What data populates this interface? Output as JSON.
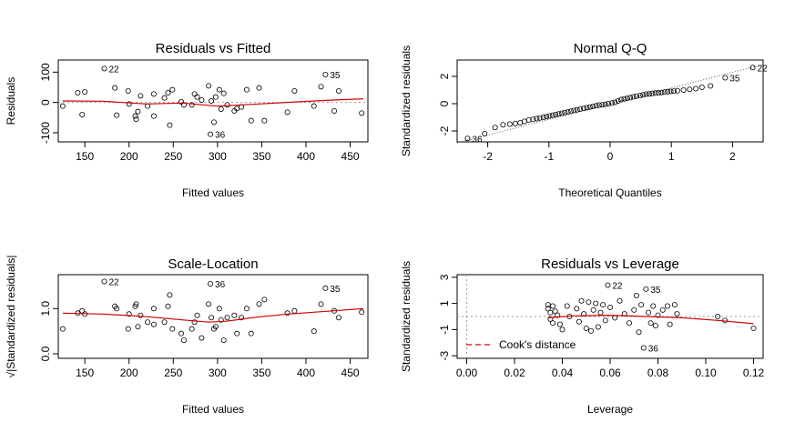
{
  "chart_data": [
    {
      "type": "scatter",
      "title": "Residuals vs Fitted",
      "xlabel": "Fitted values",
      "ylabel": "Residuals",
      "xlim": [
        120,
        470
      ],
      "ylim": [
        -130,
        140
      ],
      "xticks": [
        150,
        200,
        250,
        300,
        350,
        400,
        450
      ],
      "yticks": [
        -100,
        0,
        100
      ],
      "points": [
        [
          125,
          -12
        ],
        [
          142,
          32
        ],
        [
          147,
          -40
        ],
        [
          150,
          35
        ],
        [
          172,
          112
        ],
        [
          184,
          48
        ],
        [
          186,
          -42
        ],
        [
          199,
          38
        ],
        [
          200,
          -5
        ],
        [
          207,
          -45
        ],
        [
          208,
          -55
        ],
        [
          210,
          -30
        ],
        [
          213,
          22
        ],
        [
          221,
          -12
        ],
        [
          228,
          -45
        ],
        [
          228,
          28
        ],
        [
          240,
          15
        ],
        [
          244,
          32
        ],
        [
          246,
          -75
        ],
        [
          249,
          42
        ],
        [
          259,
          2
        ],
        [
          262,
          -8
        ],
        [
          271,
          -8
        ],
        [
          274,
          28
        ],
        [
          277,
          18
        ],
        [
          282,
          8
        ],
        [
          290,
          55
        ],
        [
          292,
          -105
        ],
        [
          293,
          5
        ],
        [
          296,
          -65
        ],
        [
          298,
          18
        ],
        [
          302,
          42
        ],
        [
          304,
          -22
        ],
        [
          307,
          30
        ],
        [
          311,
          -8
        ],
        [
          319,
          -28
        ],
        [
          322,
          -20
        ],
        [
          327,
          -15
        ],
        [
          333,
          42
        ],
        [
          338,
          -60
        ],
        [
          347,
          48
        ],
        [
          353,
          -60
        ],
        [
          379,
          -32
        ],
        [
          387,
          38
        ],
        [
          409,
          -12
        ],
        [
          417,
          52
        ],
        [
          422,
          92
        ],
        [
          432,
          -28
        ],
        [
          437,
          38
        ],
        [
          463,
          -35
        ]
      ],
      "smooth": [
        [
          125,
          5
        ],
        [
          170,
          4
        ],
        [
          220,
          -5
        ],
        [
          260,
          -2
        ],
        [
          300,
          -12
        ],
        [
          340,
          -6
        ],
        [
          390,
          2
        ],
        [
          430,
          8
        ],
        [
          465,
          12
        ]
      ],
      "labels": [
        {
          "text": "22",
          "x": 172,
          "y": 112
        },
        {
          "text": "35",
          "x": 422,
          "y": 92
        },
        {
          "text": "36",
          "x": 292,
          "y": -105
        }
      ],
      "grid": false
    },
    {
      "type": "scatter",
      "title": "Normal Q-Q",
      "xlabel": "Theoretical Quantiles",
      "ylabel": "Standardized residuals",
      "xlim": [
        -2.5,
        2.5
      ],
      "ylim": [
        -2.8,
        3.2
      ],
      "xticks": [
        -2,
        -1,
        0,
        1,
        2
      ],
      "yticks": [
        -2,
        0,
        2
      ],
      "reference_line": {
        "slope": 1.15,
        "intercept": 0
      },
      "points": [
        [
          -2.33,
          -2.55
        ],
        [
          -2.05,
          -2.2
        ],
        [
          -1.88,
          -1.75
        ],
        [
          -1.75,
          -1.55
        ],
        [
          -1.64,
          -1.5
        ],
        [
          -1.55,
          -1.45
        ],
        [
          -1.47,
          -1.4
        ],
        [
          -1.4,
          -1.3
        ],
        [
          -1.33,
          -1.2
        ],
        [
          -1.26,
          -1.15
        ],
        [
          -1.2,
          -1.1
        ],
        [
          -1.15,
          -1.05
        ],
        [
          -1.09,
          -1.0
        ],
        [
          -1.04,
          -0.95
        ],
        [
          -0.99,
          -0.9
        ],
        [
          -0.94,
          -0.85
        ],
        [
          -0.89,
          -0.8
        ],
        [
          -0.84,
          -0.75
        ],
        [
          -0.79,
          -0.7
        ],
        [
          -0.74,
          -0.65
        ],
        [
          -0.69,
          -0.6
        ],
        [
          -0.64,
          -0.55
        ],
        [
          -0.59,
          -0.5
        ],
        [
          -0.54,
          -0.45
        ],
        [
          -0.49,
          -0.4
        ],
        [
          -0.43,
          -0.35
        ],
        [
          -0.38,
          -0.3
        ],
        [
          -0.33,
          -0.25
        ],
        [
          -0.28,
          -0.2
        ],
        [
          -0.23,
          -0.15
        ],
        [
          -0.18,
          -0.1
        ],
        [
          -0.13,
          -0.08
        ],
        [
          -0.08,
          -0.05
        ],
        [
          -0.03,
          0.0
        ],
        [
          0.03,
          0.05
        ],
        [
          0.08,
          0.1
        ],
        [
          0.13,
          0.2
        ],
        [
          0.18,
          0.3
        ],
        [
          0.23,
          0.35
        ],
        [
          0.28,
          0.4
        ],
        [
          0.33,
          0.45
        ],
        [
          0.38,
          0.5
        ],
        [
          0.43,
          0.55
        ],
        [
          0.49,
          0.6
        ],
        [
          0.54,
          0.65
        ],
        [
          0.59,
          0.7
        ],
        [
          0.64,
          0.72
        ],
        [
          0.69,
          0.75
        ],
        [
          0.74,
          0.78
        ],
        [
          0.79,
          0.8
        ],
        [
          0.84,
          0.82
        ],
        [
          0.89,
          0.85
        ],
        [
          0.94,
          0.88
        ],
        [
          0.99,
          0.9
        ],
        [
          1.04,
          0.92
        ],
        [
          1.1,
          0.95
        ],
        [
          1.2,
          1.0
        ],
        [
          1.3,
          1.05
        ],
        [
          1.4,
          1.1
        ],
        [
          1.5,
          1.2
        ],
        [
          1.64,
          1.3
        ],
        [
          1.88,
          1.9
        ],
        [
          2.33,
          2.65
        ]
      ],
      "labels": [
        {
          "text": "22",
          "x": 2.33,
          "y": 2.65
        },
        {
          "text": "35",
          "x": 1.88,
          "y": 1.9
        },
        {
          "text": "36",
          "x": -2.33,
          "y": -2.55
        }
      ],
      "grid": false
    },
    {
      "type": "scatter",
      "title": "Scale-Location",
      "xlabel": "Fitted values",
      "ylabel": "√|Standardized residuals|",
      "xlim": [
        120,
        470
      ],
      "ylim": [
        -0.1,
        1.75
      ],
      "xticks": [
        150,
        200,
        250,
        300,
        350,
        400,
        450
      ],
      "yticks": [
        0.0,
        1.0
      ],
      "ytick_labels": [
        "0.0",
        "1.0"
      ],
      "points": [
        [
          125,
          0.55
        ],
        [
          142,
          0.9
        ],
        [
          147,
          0.95
        ],
        [
          150,
          0.88
        ],
        [
          172,
          1.6
        ],
        [
          184,
          1.05
        ],
        [
          186,
          1.0
        ],
        [
          199,
          0.55
        ],
        [
          200,
          0.88
        ],
        [
          207,
          1.05
        ],
        [
          208,
          1.1
        ],
        [
          210,
          0.6
        ],
        [
          213,
          0.85
        ],
        [
          221,
          0.7
        ],
        [
          228,
          0.65
        ],
        [
          228,
          1.0
        ],
        [
          240,
          0.7
        ],
        [
          244,
          1.05
        ],
        [
          246,
          1.3
        ],
        [
          249,
          0.55
        ],
        [
          259,
          0.45
        ],
        [
          262,
          0.3
        ],
        [
          271,
          0.55
        ],
        [
          274,
          0.7
        ],
        [
          277,
          0.85
        ],
        [
          282,
          0.35
        ],
        [
          290,
          1.1
        ],
        [
          292,
          1.55
        ],
        [
          293,
          0.8
        ],
        [
          296,
          0.55
        ],
        [
          298,
          0.6
        ],
        [
          302,
          1.0
        ],
        [
          304,
          0.75
        ],
        [
          307,
          0.3
        ],
        [
          311,
          0.8
        ],
        [
          319,
          0.85
        ],
        [
          322,
          0.45
        ],
        [
          327,
          0.8
        ],
        [
          333,
          1.0
        ],
        [
          338,
          0.45
        ],
        [
          347,
          1.1
        ],
        [
          353,
          1.2
        ],
        [
          379,
          0.9
        ],
        [
          387,
          0.95
        ],
        [
          409,
          0.5
        ],
        [
          417,
          1.1
        ],
        [
          422,
          1.45
        ],
        [
          432,
          0.95
        ],
        [
          437,
          0.8
        ],
        [
          463,
          0.92
        ]
      ],
      "smooth": [
        [
          125,
          0.9
        ],
        [
          170,
          0.88
        ],
        [
          220,
          0.82
        ],
        [
          260,
          0.75
        ],
        [
          290,
          0.7
        ],
        [
          310,
          0.72
        ],
        [
          340,
          0.8
        ],
        [
          380,
          0.88
        ],
        [
          430,
          0.95
        ],
        [
          465,
          1.0
        ]
      ],
      "labels": [
        {
          "text": "22",
          "x": 172,
          "y": 1.6
        },
        {
          "text": "36",
          "x": 292,
          "y": 1.55
        },
        {
          "text": "35",
          "x": 422,
          "y": 1.45
        }
      ],
      "grid": false
    },
    {
      "type": "scatter",
      "title": "Residuals vs Leverage",
      "xlabel": "Leverage",
      "ylabel": "Standardized residuals",
      "xlim": [
        -0.004,
        0.124
      ],
      "ylim": [
        -3.2,
        3.2
      ],
      "xticks": [
        0.0,
        0.02,
        0.04,
        0.06,
        0.08,
        0.1,
        0.12
      ],
      "xtick_labels": [
        "0.00",
        "0.02",
        "0.04",
        "0.06",
        "0.08",
        "0.10",
        "0.12"
      ],
      "yticks": [
        -3,
        -1,
        1,
        3
      ],
      "legend": {
        "label": "Cook's distance",
        "position": "bottom-left"
      },
      "points": [
        [
          0.034,
          0.9
        ],
        [
          0.034,
          0.6
        ],
        [
          0.035,
          0.3
        ],
        [
          0.035,
          -0.2
        ],
        [
          0.036,
          0.8
        ],
        [
          0.036,
          -0.5
        ],
        [
          0.037,
          0.4
        ],
        [
          0.038,
          0.1
        ],
        [
          0.039,
          -0.6
        ],
        [
          0.04,
          -1.0
        ],
        [
          0.042,
          0.8
        ],
        [
          0.043,
          0.0
        ],
        [
          0.046,
          0.6
        ],
        [
          0.047,
          -0.4
        ],
        [
          0.048,
          1.2
        ],
        [
          0.049,
          0.2
        ],
        [
          0.05,
          -0.9
        ],
        [
          0.051,
          1.1
        ],
        [
          0.052,
          -1.1
        ],
        [
          0.053,
          0.5
        ],
        [
          0.054,
          1.0
        ],
        [
          0.055,
          -0.8
        ],
        [
          0.056,
          0.3
        ],
        [
          0.057,
          0.9
        ],
        [
          0.058,
          -0.3
        ],
        [
          0.059,
          2.4
        ],
        [
          0.06,
          0.7
        ],
        [
          0.062,
          -0.1
        ],
        [
          0.064,
          1.2
        ],
        [
          0.066,
          0.2
        ],
        [
          0.068,
          -0.5
        ],
        [
          0.07,
          0.5
        ],
        [
          0.071,
          1.6
        ],
        [
          0.072,
          -1.2
        ],
        [
          0.073,
          0.9
        ],
        [
          0.074,
          -2.4
        ],
        [
          0.075,
          2.1
        ],
        [
          0.076,
          0.3
        ],
        [
          0.077,
          -0.5
        ],
        [
          0.078,
          0.8
        ],
        [
          0.079,
          -0.7
        ],
        [
          0.08,
          0.1
        ],
        [
          0.082,
          0.5
        ],
        [
          0.084,
          0.8
        ],
        [
          0.085,
          -0.6
        ],
        [
          0.087,
          0.9
        ],
        [
          0.088,
          0.2
        ],
        [
          0.105,
          0.0
        ],
        [
          0.108,
          -0.3
        ],
        [
          0.12,
          -0.9
        ]
      ],
      "smooth": [
        [
          0.034,
          -0.1
        ],
        [
          0.045,
          0.05
        ],
        [
          0.06,
          0.1
        ],
        [
          0.075,
          0.0
        ],
        [
          0.09,
          -0.1
        ],
        [
          0.105,
          -0.3
        ],
        [
          0.12,
          -0.55
        ]
      ],
      "labels": [
        {
          "text": "22",
          "x": 0.059,
          "y": 2.4
        },
        {
          "text": "35",
          "x": 0.075,
          "y": 2.1
        },
        {
          "text": "36",
          "x": 0.074,
          "y": -2.4
        }
      ],
      "grid": false
    }
  ]
}
